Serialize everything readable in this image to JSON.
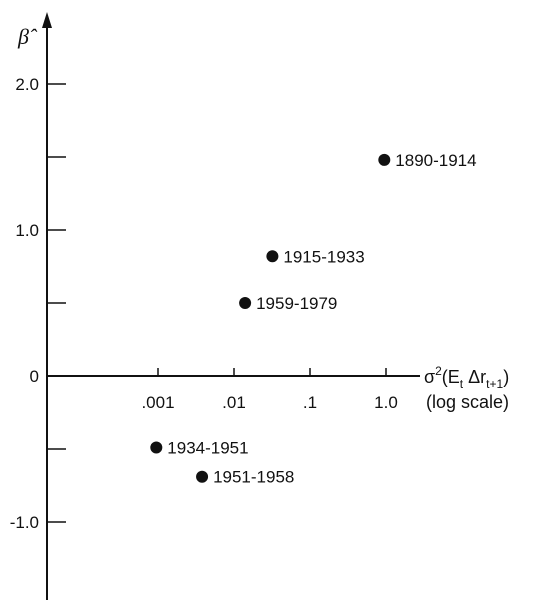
{
  "chart_data": {
    "type": "scatter",
    "title": "",
    "ylabel": "β̂",
    "xlabel": "σ²(E_t Δr_{t+1})",
    "xlabel_note": "(log scale)",
    "x_scale": "log",
    "ylim": [
      -1.45,
      2.45
    ],
    "xlim_log10": [
      -4.3,
      0.95
    ],
    "y_ticks": [
      -1.0,
      -0.5,
      0,
      0.5,
      1.0,
      1.5,
      2.0
    ],
    "y_tick_labels": [
      {
        "value": -1.0,
        "label": "-1.0"
      },
      {
        "value": 0,
        "label": "0"
      },
      {
        "value": 1.0,
        "label": "1.0"
      },
      {
        "value": 2.0,
        "label": "2.0"
      }
    ],
    "x_tick_labels": [
      {
        "value": 0.001,
        "label": ".001"
      },
      {
        "value": 0.01,
        "label": ".01"
      },
      {
        "value": 0.1,
        "label": ".1"
      },
      {
        "value": 1.0,
        "label": "1.0"
      }
    ],
    "points": [
      {
        "label": "1890-1914",
        "x": 0.95,
        "y": 1.48
      },
      {
        "label": "1915-1933",
        "x": 0.032,
        "y": 0.82
      },
      {
        "label": "1959-1979",
        "x": 0.014,
        "y": 0.5
      },
      {
        "label": "1934-1951",
        "x": 0.00095,
        "y": -0.49
      },
      {
        "label": "1951-1958",
        "x": 0.0038,
        "y": -0.69
      }
    ],
    "grid": false,
    "legend": "none"
  }
}
